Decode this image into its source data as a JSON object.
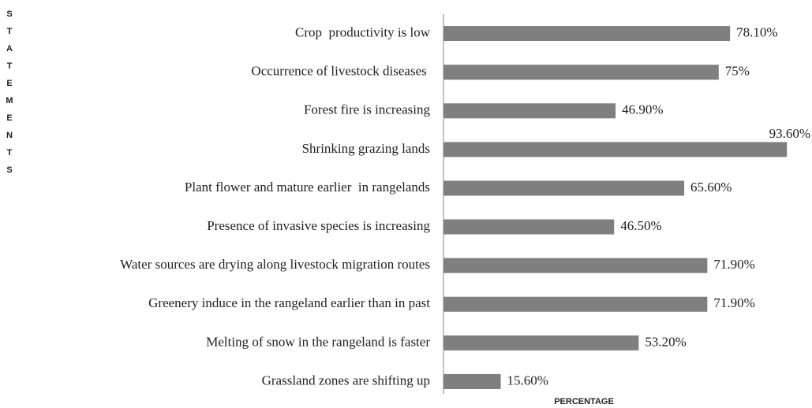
{
  "chart_data": {
    "type": "bar",
    "orientation": "horizontal",
    "x_label": "PERCENTAGE",
    "y_label": "STATEMENTS",
    "categories": [
      "Crop  productivity is low",
      "Occurrence of livestock diseases ",
      "Forest fire is increasing",
      "Shrinking grazing lands",
      "Plant flower and mature earlier  in rangelands",
      "Presence of invasive species is increasing",
      "Water sources are drying along livestock migration routes",
      "Greenery induce in the rangeland earlier than in past",
      "Melting of snow in the rangeland is faster",
      "Grassland zones are shifting up"
    ],
    "values": [
      78.1,
      75,
      46.9,
      93.6,
      65.6,
      46.5,
      71.9,
      71.9,
      53.2,
      15.6
    ],
    "value_labels": [
      "78.10%",
      "75%",
      "46.90%",
      "93.60%",
      "65.60%",
      "46.50%",
      "71.90%",
      "71.90%",
      "53.20%",
      "15.60%"
    ],
    "color": "#7f7f7f",
    "xlim": [
      0,
      100
    ]
  }
}
